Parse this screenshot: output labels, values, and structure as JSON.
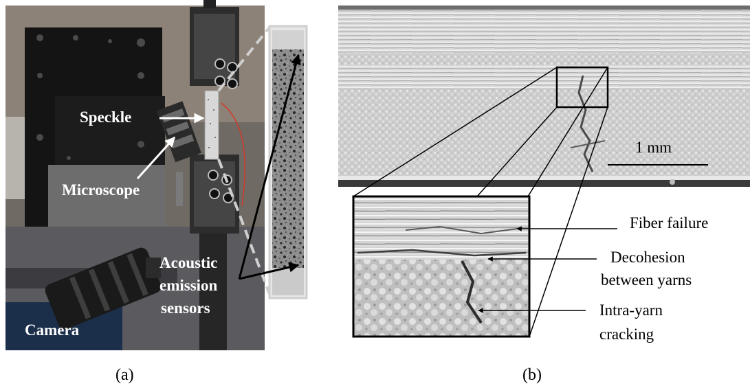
{
  "panel_a": {
    "labels": {
      "speckle": "Speckle",
      "microscope": "Microscope",
      "acoustic_line1": "Acoustic",
      "acoustic_line2": "emission",
      "acoustic_line3": "sensors",
      "camera": "Camera"
    },
    "caption": "(a)"
  },
  "panel_b": {
    "scale_bar": "1 mm",
    "labels": {
      "fiber_failure": "Fiber failure",
      "decohesion_line1": "Decohesion",
      "decohesion_line2": "between yarns",
      "intra_line1": "Intra-yarn",
      "intra_line2": "cracking"
    },
    "caption": "(b)"
  }
}
